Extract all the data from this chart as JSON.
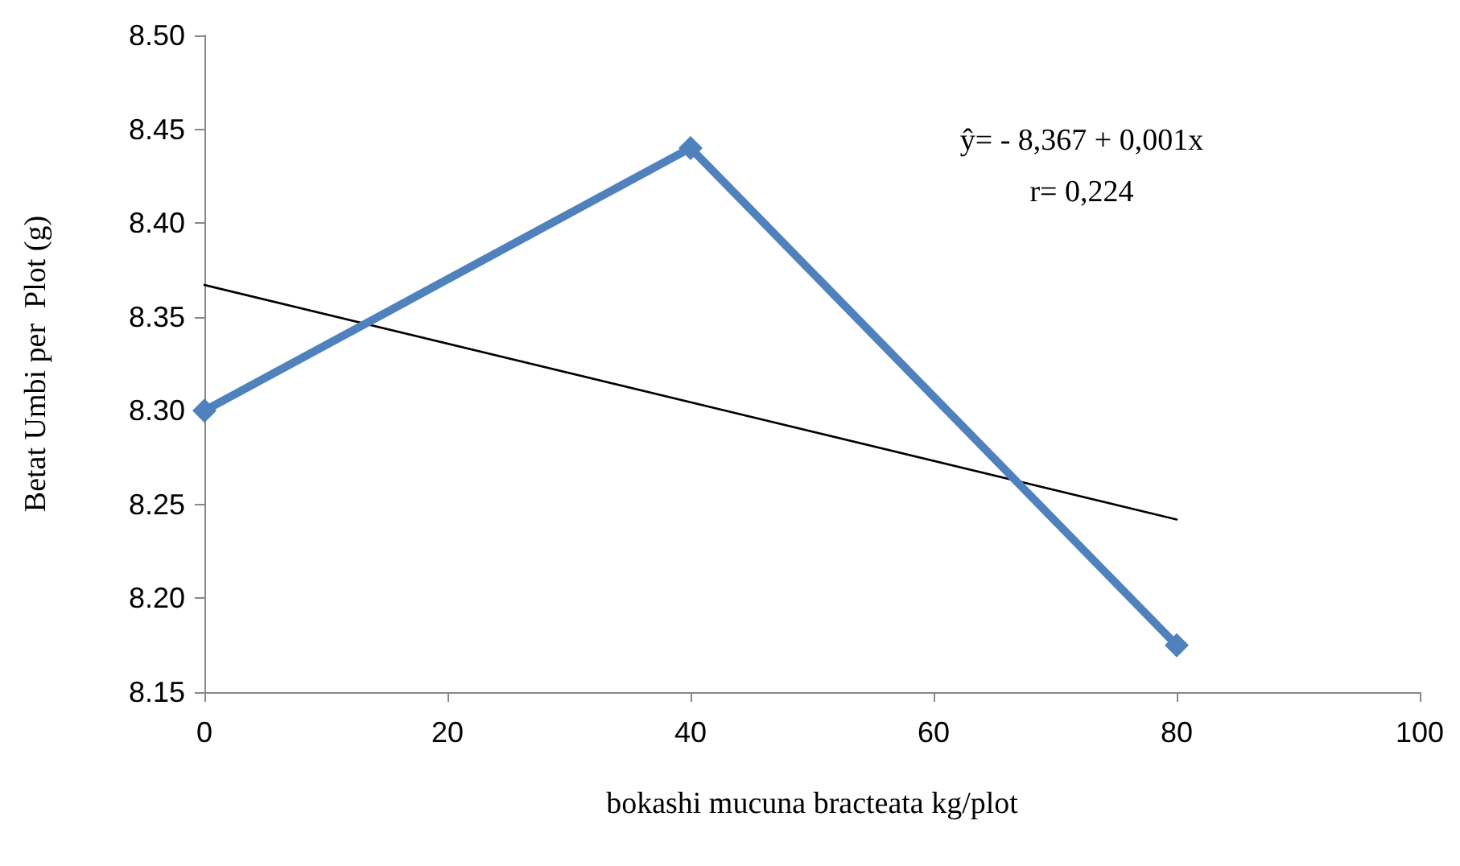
{
  "chart_data": {
    "type": "line",
    "xlabel": "bokashi mucuna bracteata kg/plot",
    "ylabel": "Betat Umbi per  Plot (g)",
    "x": [
      0,
      40,
      80
    ],
    "series": [
      {
        "color": "#4f81bd",
        "values": [
          8.3,
          8.44,
          8.175
        ],
        "marker": "diamond"
      },
      {
        "type": "line",
        "color": "#000000",
        "x": [
          0,
          80
        ],
        "values": [
          8.367,
          8.242
        ],
        "marker": "none"
      }
    ],
    "xlim": [
      0,
      100
    ],
    "xticks": [
      0,
      20,
      40,
      60,
      80,
      100
    ],
    "ylim": [
      8.15,
      8.5
    ],
    "yticks": [
      8.15,
      {
        "value": 8.2,
        "label": "8.20"
      },
      8.25,
      {
        "value": 8.3,
        "label": "8.30"
      },
      8.35,
      {
        "value": 8.4,
        "label": "8.40"
      },
      8.45,
      {
        "value": 8.5,
        "label": "8.50"
      }
    ],
    "annotations": [
      "ŷ= - 8,367 + 0,001x",
      "r= 0,224"
    ],
    "grid": false
  }
}
